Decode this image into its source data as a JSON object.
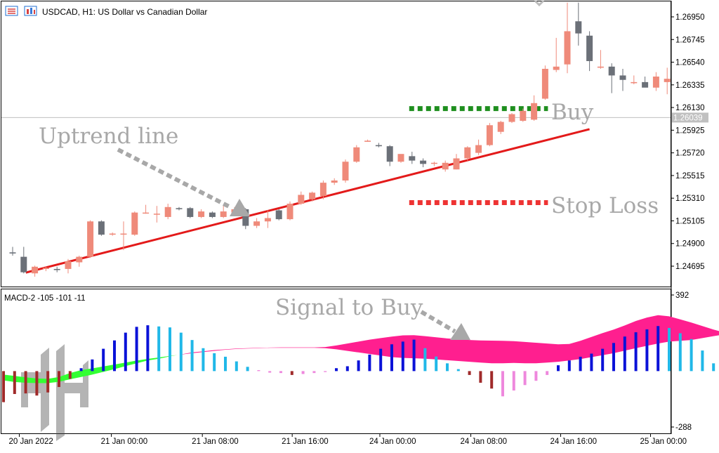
{
  "header": {
    "symbol_title": "USDCAD, H1:  US Dollar vs Canadian Dollar"
  },
  "colors": {
    "bull_candle": "#ef8a7a",
    "bear_candle": "#6b7078",
    "trendline": "#e31a1a",
    "buy_level": "#1e8f1e",
    "stop_level": "#ee3333",
    "annotation_text": "#a8a8a8",
    "macd_blue": "#0a12d8",
    "macd_cyan": "#20b8e8",
    "macd_darkred": "#a02a2a",
    "macd_pink": "#ee88dd",
    "cloud_green": "#33ff33",
    "cloud_magenta": "#ff1f8f",
    "current_price_line": "#c0c0c0"
  },
  "annotations": {
    "uptrend": "Uptrend line",
    "buy": "Buy",
    "stop_loss": "Stop Loss",
    "signal": "Signal to Buy"
  },
  "chart_data": [
    {
      "type": "candlestick",
      "title": "USDCAD, H1:  US Dollar vs Canadian Dollar",
      "y_ticks": [
        "1.26950",
        "1.26745",
        "1.26540",
        "1.26335",
        "1.26130",
        "1.25925",
        "1.25720",
        "1.25515",
        "1.25310",
        "1.25105",
        "1.24900",
        "1.24695"
      ],
      "y_range": [
        1.245,
        1.2715
      ],
      "current_price": "1.26039",
      "x_ticks": [
        "20 Jan 2022",
        "21 Jan 00:00",
        "21 Jan 08:00",
        "21 Jan 16:00",
        "24 Jan 00:00",
        "24 Jan 08:00",
        "24 Jan 16:00",
        "25 Jan 00:00"
      ],
      "candles": [
        {
          "o": 1.2482,
          "h": 1.2487,
          "l": 1.2479,
          "c": 1.2481
        },
        {
          "o": 1.2478,
          "h": 1.2487,
          "l": 1.2463,
          "c": 1.2464
        },
        {
          "o": 1.2463,
          "h": 1.247,
          "l": 1.246,
          "c": 1.2469
        },
        {
          "o": 1.2467,
          "h": 1.2469,
          "l": 1.2465,
          "c": 1.2468
        },
        {
          "o": 1.2467,
          "h": 1.2469,
          "l": 1.2464,
          "c": 1.2466
        },
        {
          "o": 1.2467,
          "h": 1.2476,
          "l": 1.2463,
          "c": 1.2474
        },
        {
          "o": 1.2473,
          "h": 1.2479,
          "l": 1.2469,
          "c": 1.2478
        },
        {
          "o": 1.2478,
          "h": 1.2511,
          "l": 1.2477,
          "c": 1.251
        },
        {
          "o": 1.251,
          "h": 1.2511,
          "l": 1.2497,
          "c": 1.2498
        },
        {
          "o": 1.2498,
          "h": 1.25,
          "l": 1.2497,
          "c": 1.2499
        },
        {
          "o": 1.2499,
          "h": 1.251,
          "l": 1.2484,
          "c": 1.2499
        },
        {
          "o": 1.2498,
          "h": 1.2519,
          "l": 1.2497,
          "c": 1.2518
        },
        {
          "o": 1.2518,
          "h": 1.2525,
          "l": 1.2517,
          "c": 1.2518
        },
        {
          "o": 1.2517,
          "h": 1.2524,
          "l": 1.2509,
          "c": 1.2517
        },
        {
          "o": 1.2514,
          "h": 1.2526,
          "l": 1.2512,
          "c": 1.2523
        },
        {
          "o": 1.2522,
          "h": 1.2523,
          "l": 1.252,
          "c": 1.2521
        },
        {
          "o": 1.2522,
          "h": 1.2523,
          "l": 1.2513,
          "c": 1.2514
        },
        {
          "o": 1.2514,
          "h": 1.2521,
          "l": 1.2513,
          "c": 1.2519
        },
        {
          "o": 1.2518,
          "h": 1.2519,
          "l": 1.2513,
          "c": 1.2514
        },
        {
          "o": 1.2514,
          "h": 1.2525,
          "l": 1.2513,
          "c": 1.2519
        },
        {
          "o": 1.2518,
          "h": 1.2523,
          "l": 1.2515,
          "c": 1.2521
        },
        {
          "o": 1.2521,
          "h": 1.2522,
          "l": 1.2503,
          "c": 1.2506
        },
        {
          "o": 1.2506,
          "h": 1.2513,
          "l": 1.2504,
          "c": 1.251
        },
        {
          "o": 1.251,
          "h": 1.252,
          "l": 1.2504,
          "c": 1.2513
        },
        {
          "o": 1.252,
          "h": 1.2521,
          "l": 1.2511,
          "c": 1.2512
        },
        {
          "o": 1.2512,
          "h": 1.2528,
          "l": 1.2511,
          "c": 1.2526
        },
        {
          "o": 1.2526,
          "h": 1.2537,
          "l": 1.2525,
          "c": 1.2534
        },
        {
          "o": 1.253,
          "h": 1.2537,
          "l": 1.2528,
          "c": 1.2536
        },
        {
          "o": 1.2533,
          "h": 1.2547,
          "l": 1.253,
          "c": 1.2545
        },
        {
          "o": 1.2545,
          "h": 1.2549,
          "l": 1.2543,
          "c": 1.2547
        },
        {
          "o": 1.2547,
          "h": 1.2566,
          "l": 1.2545,
          "c": 1.2564
        },
        {
          "o": 1.2564,
          "h": 1.2579,
          "l": 1.2563,
          "c": 1.2577
        },
        {
          "o": 1.2582,
          "h": 1.2584,
          "l": 1.2582,
          "c": 1.2583
        },
        {
          "o": 1.2579,
          "h": 1.2581,
          "l": 1.2577,
          "c": 1.2578
        },
        {
          "o": 1.2578,
          "h": 1.2579,
          "l": 1.256,
          "c": 1.2564
        },
        {
          "o": 1.2564,
          "h": 1.257,
          "l": 1.2563,
          "c": 1.2571
        },
        {
          "o": 1.2569,
          "h": 1.2573,
          "l": 1.2562,
          "c": 1.2565
        },
        {
          "o": 1.2565,
          "h": 1.2567,
          "l": 1.2559,
          "c": 1.2562
        },
        {
          "o": 1.2563,
          "h": 1.2564,
          "l": 1.256,
          "c": 1.2563
        },
        {
          "o": 1.2557,
          "h": 1.2565,
          "l": 1.2555,
          "c": 1.2563
        },
        {
          "o": 1.2557,
          "h": 1.2571,
          "l": 1.2557,
          "c": 1.2567
        },
        {
          "o": 1.2567,
          "h": 1.2578,
          "l": 1.2565,
          "c": 1.2577
        },
        {
          "o": 1.2572,
          "h": 1.2584,
          "l": 1.257,
          "c": 1.2579
        },
        {
          "o": 1.2579,
          "h": 1.2599,
          "l": 1.2578,
          "c": 1.2597
        },
        {
          "o": 1.2591,
          "h": 1.2601,
          "l": 1.2589,
          "c": 1.26
        },
        {
          "o": 1.26,
          "h": 1.2608,
          "l": 1.2599,
          "c": 1.2607
        },
        {
          "o": 1.2601,
          "h": 1.2612,
          "l": 1.26,
          "c": 1.261
        },
        {
          "o": 1.2602,
          "h": 1.2624,
          "l": 1.2601,
          "c": 1.2617
        },
        {
          "o": 1.2621,
          "h": 1.2651,
          "l": 1.262,
          "c": 1.2648
        },
        {
          "o": 1.2647,
          "h": 1.2676,
          "l": 1.2645,
          "c": 1.265
        },
        {
          "o": 1.2652,
          "h": 1.2708,
          "l": 1.2644,
          "c": 1.2682
        },
        {
          "o": 1.2691,
          "h": 1.2708,
          "l": 1.2669,
          "c": 1.268
        },
        {
          "o": 1.2678,
          "h": 1.2682,
          "l": 1.2646,
          "c": 1.2655
        },
        {
          "o": 1.2649,
          "h": 1.2665,
          "l": 1.2648,
          "c": 1.265
        },
        {
          "o": 1.265,
          "h": 1.2653,
          "l": 1.2626,
          "c": 1.2642
        },
        {
          "o": 1.2642,
          "h": 1.2648,
          "l": 1.2628,
          "c": 1.2638
        },
        {
          "o": 1.2635,
          "h": 1.2642,
          "l": 1.2634,
          "c": 1.2636
        },
        {
          "o": 1.2636,
          "h": 1.2641,
          "l": 1.2632,
          "c": 1.2631
        },
        {
          "o": 1.2631,
          "h": 1.2645,
          "l": 1.2628,
          "c": 1.2641
        },
        {
          "o": 1.2636,
          "h": 1.2649,
          "l": 1.2625,
          "c": 1.2639
        }
      ],
      "levels": {
        "buy": 1.2612,
        "stop_loss": 1.2527,
        "level_start_candle": 36,
        "level_end_candle": 48
      },
      "trendline": {
        "from": {
          "candle": 1,
          "value": 1.24637
        },
        "to": {
          "candle": 52,
          "value": 1.25934
        }
      }
    },
    {
      "type": "bar",
      "name": "MACD-2 -105 -101 -11",
      "title": "MACD-2 -105 -101 -11",
      "y_ticks": [
        "392",
        "-288"
      ],
      "y_range": [
        -288,
        392
      ],
      "histogram": [
        -160,
        -118,
        -115,
        -126,
        -110,
        -82,
        -40,
        15,
        60,
        115,
        158,
        198,
        228,
        236,
        230,
        225,
        198,
        160,
        118,
        92,
        74,
        50,
        22,
        5,
        -8,
        -10,
        -20,
        -15,
        -10,
        -5,
        15,
        25,
        55,
        85,
        115,
        138,
        152,
        162,
        118,
        75,
        40,
        10,
        -20,
        -60,
        -90,
        -130,
        -100,
        -72,
        -50,
        -20,
        30,
        55,
        74,
        90,
        115,
        145,
        178,
        200,
        215,
        232,
        222,
        195,
        165,
        106,
        40,
        5,
        -80,
        -140,
        -200,
        -240,
        -200
      ],
      "hist_colors": [
        "darkred",
        "darkred",
        "darkred",
        "darkred",
        "darkred",
        "darkred",
        "darkred",
        "blue",
        "blue",
        "blue",
        "blue",
        "blue",
        "blue",
        "blue",
        "cyan",
        "cyan",
        "cyan",
        "cyan",
        "cyan",
        "cyan",
        "cyan",
        "cyan",
        "cyan",
        "pink",
        "pink",
        "pink",
        "darkred",
        "pink",
        "pink",
        "pink",
        "blue",
        "blue",
        "blue",
        "blue",
        "blue",
        "blue",
        "blue",
        "blue",
        "cyan",
        "cyan",
        "cyan",
        "cyan",
        "darkred",
        "darkred",
        "darkred",
        "pink",
        "pink",
        "pink",
        "pink",
        "pink",
        "blue",
        "blue",
        "blue",
        "blue",
        "blue",
        "blue",
        "blue",
        "blue",
        "blue",
        "blue",
        "cyan",
        "cyan",
        "cyan",
        "cyan",
        "cyan",
        "cyan",
        "darkred",
        "darkred",
        "darkred",
        "darkred",
        "pink"
      ],
      "line_a": [
        -18,
        -25,
        -32,
        -38,
        -40,
        -30,
        -10,
        5,
        14,
        24,
        34,
        44,
        54,
        63,
        70,
        78,
        85,
        92,
        98,
        104,
        110,
        114,
        116,
        118,
        120,
        120,
        120,
        120,
        120,
        118,
        112,
        104,
        96,
        88,
        80,
        72,
        68,
        66,
        64,
        60,
        56,
        52,
        48,
        44,
        40,
        40,
        42,
        40,
        40,
        44,
        48,
        55,
        62,
        72,
        82,
        92,
        105,
        118,
        130,
        142,
        152,
        156,
        160,
        170,
        180,
        189,
        196,
        203,
        208,
        212,
        215
      ],
      "line_b": [
        -48,
        -56,
        -60,
        -62,
        -62,
        -55,
        -42,
        -30,
        -18,
        -4,
        10,
        26,
        40,
        55,
        64,
        76,
        86,
        96,
        102,
        108,
        112,
        116,
        118,
        120,
        121,
        122,
        122,
        122,
        122,
        124,
        132,
        142,
        152,
        162,
        170,
        178,
        184,
        185,
        180,
        174,
        168,
        164,
        160,
        158,
        157,
        156,
        154,
        150,
        146,
        142,
        138,
        140,
        156,
        176,
        196,
        214,
        235,
        258,
        276,
        288,
        282,
        266,
        250,
        232,
        214,
        198,
        192,
        186,
        182,
        181,
        180
      ]
    }
  ]
}
